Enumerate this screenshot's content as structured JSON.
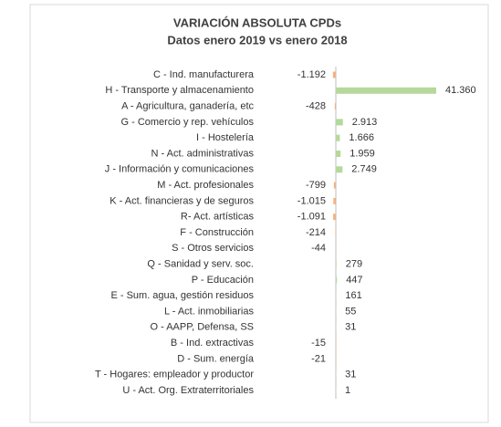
{
  "chart_data": {
    "type": "barh",
    "title": "VARIACIÓN ABSOLUTA CPDs",
    "subtitle": "Datos enero 2019 vs enero 2018",
    "categories": [
      "C - Ind. manufacturera",
      "H - Transporte y almacenamiento",
      "A - Agricultura, ganadería, etc",
      "G - Comercio y rep. vehículos",
      "I - Hostelería",
      "N - Act. administrativas",
      "J - Información y comunicaciones",
      "M - Act. profesionales",
      "K - Act. financieras y de seguros",
      "R- Act. artísticas",
      "F - Construcción",
      "S - Otros servicios",
      "Q - Sanidad y serv. soc.",
      "P - Educación",
      "E - Sum. agua, gestión residuos",
      "L - Act. inmobiliarias",
      "O - AAPP, Defensa, SS",
      "B - Ind. extractivas",
      "D - Sum. energía",
      "T - Hogares: empleador y productor",
      "U - Act. Org. Extraterritoriales"
    ],
    "values": [
      -1192,
      41360,
      -428,
      2913,
      1666,
      1959,
      2749,
      -799,
      -1015,
      -1091,
      -214,
      -44,
      279,
      447,
      161,
      55,
      31,
      -15,
      -21,
      31,
      1
    ],
    "value_labels": [
      "-1.192",
      "41.360",
      "-428",
      "2.913",
      "1.666",
      "1.959",
      "2.749",
      "-799",
      "-1.015",
      "-1.091",
      "-214",
      "-44",
      "279",
      "447",
      "161",
      "55",
      "31",
      "-15",
      "-21",
      "31",
      "1"
    ],
    "positive_color": "#b5d99c",
    "negative_color": "#f4b183"
  }
}
